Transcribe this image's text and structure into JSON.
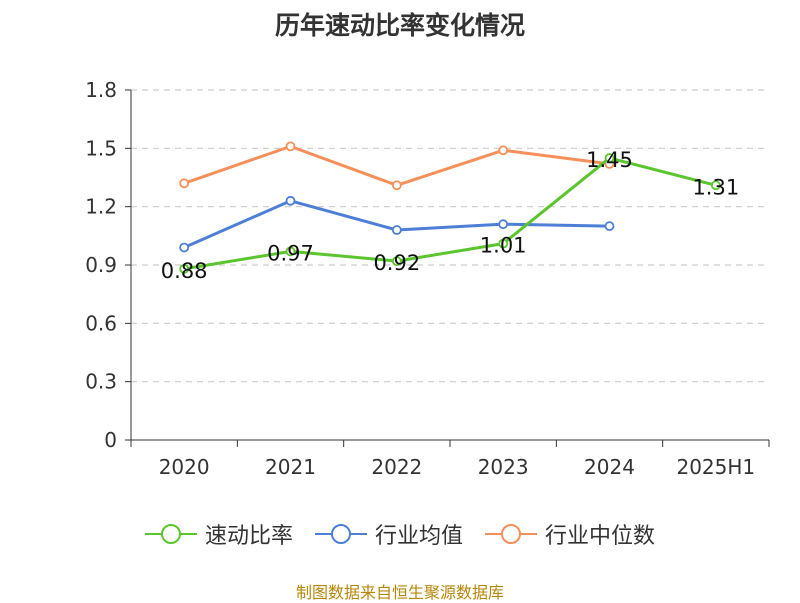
{
  "title": "历年速动比率变化情况",
  "source": "制图数据来自恒生聚源数据库",
  "chart_data": {
    "type": "line",
    "categories": [
      "2020",
      "2021",
      "2022",
      "2023",
      "2024",
      "2025H1"
    ],
    "ylim": [
      0,
      1.8
    ],
    "yticks": [
      "0",
      "0.3",
      "0.6",
      "0.9",
      "1.2",
      "1.5",
      "1.8"
    ],
    "grid": true,
    "legend_position": "bottom",
    "series": [
      {
        "name": "速动比率",
        "color": "#5bc52e",
        "values": [
          0.88,
          0.97,
          0.92,
          1.01,
          1.45,
          1.31
        ],
        "labels": [
          "0.88",
          "0.97",
          "0.92",
          "1.01",
          "1.45",
          "1.31"
        ]
      },
      {
        "name": "行业均值",
        "color": "#4e7fd6",
        "values": [
          0.99,
          1.23,
          1.08,
          1.11,
          1.1,
          null
        ]
      },
      {
        "name": "行业中位数",
        "color": "#f5905a",
        "values": [
          1.32,
          1.51,
          1.31,
          1.49,
          1.42,
          null
        ]
      }
    ]
  }
}
